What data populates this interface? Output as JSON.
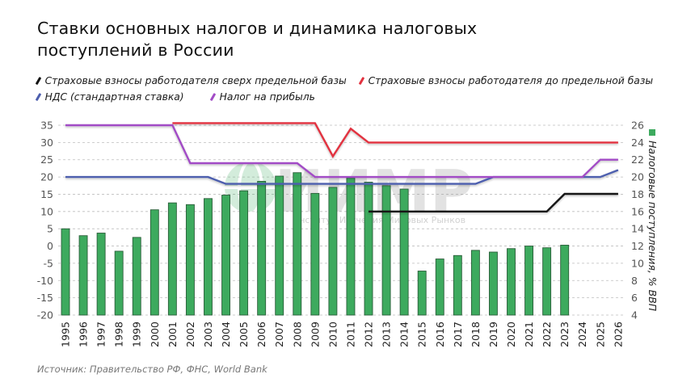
{
  "title": {
    "line1": "Ставки основных налогов и динамика налоговых",
    "line2": "поступлений в России"
  },
  "legend": [
    {
      "label": "Страховые взносы работодателя сверх предельной базы",
      "color": "#141414"
    },
    {
      "label": "Страховые взносы работодателя до предельной базы",
      "color": "#e2323f"
    },
    {
      "label": "НДС (стандартная ставка)",
      "color": "#4d5fae"
    },
    {
      "label": "Налог на прибыль",
      "color": "#a24cc6"
    }
  ],
  "source": "Источник: Правительство РФ, ФНС, World Bank",
  "watermark": {
    "logo_text": "ИИМР",
    "subtitle": "Институт Изучения Мировых Рынков"
  },
  "colors": {
    "bar_fill": "#3daa5e",
    "bar_stroke": "#2b5e3a",
    "grid": "#bdbdbd"
  },
  "chart_data": {
    "type": "bar+line",
    "title": "Ставки основных налогов и динамика налоговых поступлений в России",
    "xlabel": "",
    "ylabel_left": "",
    "ylabel_right": "Налоговые поступления, % ВВП",
    "ylim_left": [
      -20,
      35
    ],
    "yticks_left": [
      35,
      30,
      25,
      20,
      15,
      10,
      5,
      0,
      -5,
      -10,
      -15,
      -20
    ],
    "ylim_right": [
      4,
      26
    ],
    "yticks_right": [
      26,
      24,
      22,
      20,
      18,
      16,
      14,
      12,
      10,
      8,
      6,
      4
    ],
    "grid": true,
    "categories": [
      "1995",
      "1996",
      "1997",
      "1998",
      "1999",
      "2000",
      "2001",
      "2002",
      "2003",
      "2004",
      "2005",
      "2006",
      "2007",
      "2008",
      "2009",
      "2010",
      "2011",
      "2012",
      "2013",
      "2014",
      "2015",
      "2016",
      "2017",
      "2018",
      "2019",
      "2020",
      "2021",
      "2022",
      "2023",
      "2024",
      "2025",
      "2026"
    ],
    "bars": {
      "name": "Налоговые поступления, % ВВП",
      "axis": "right",
      "values": [
        14.0,
        13.2,
        13.5,
        11.4,
        13.0,
        16.2,
        17.0,
        16.8,
        17.5,
        17.9,
        18.4,
        19.5,
        20.1,
        20.5,
        18.1,
        18.8,
        19.9,
        19.4,
        19.0,
        18.6,
        9.1,
        10.5,
        10.9,
        11.5,
        11.3,
        11.7,
        12.0,
        11.8,
        12.1,
        null,
        null,
        null
      ]
    },
    "series": [
      {
        "name": "Страховые взносы работодателя сверх предельной базы",
        "axis": "left",
        "color": "#141414",
        "values": [
          null,
          null,
          null,
          null,
          null,
          null,
          null,
          null,
          null,
          null,
          null,
          null,
          null,
          null,
          null,
          null,
          null,
          10,
          10,
          10,
          10,
          10,
          10,
          10,
          10,
          10,
          10,
          10,
          15.1,
          15.1,
          15.1,
          15.1
        ]
      },
      {
        "name": "Страховые взносы работодателя до предельной базы",
        "axis": "left",
        "color": "#e2323f",
        "values": [
          null,
          null,
          null,
          null,
          null,
          null,
          35.6,
          35.6,
          35.6,
          35.6,
          35.6,
          35.6,
          35.6,
          35.6,
          35.6,
          26,
          34,
          30,
          30,
          30,
          30,
          30,
          30,
          30,
          30,
          30,
          30,
          30,
          30,
          30,
          30,
          30
        ]
      },
      {
        "name": "НДС (стандартная ставка)",
        "axis": "left",
        "color": "#4d5fae",
        "values": [
          20,
          20,
          20,
          20,
          20,
          20,
          20,
          20,
          20,
          18,
          18,
          18,
          18,
          18,
          18,
          18,
          18,
          18,
          18,
          18,
          18,
          18,
          18,
          18,
          20,
          20,
          20,
          20,
          20,
          20,
          20,
          22
        ]
      },
      {
        "name": "Налог на прибыль",
        "axis": "left",
        "color": "#a24cc6",
        "values": [
          35,
          35,
          35,
          35,
          35,
          35,
          35,
          24,
          24,
          24,
          24,
          24,
          24,
          24,
          20,
          20,
          20,
          20,
          20,
          20,
          20,
          20,
          20,
          20,
          20,
          20,
          20,
          20,
          20,
          20,
          25,
          25
        ]
      }
    ],
    "legend_position": "top"
  }
}
